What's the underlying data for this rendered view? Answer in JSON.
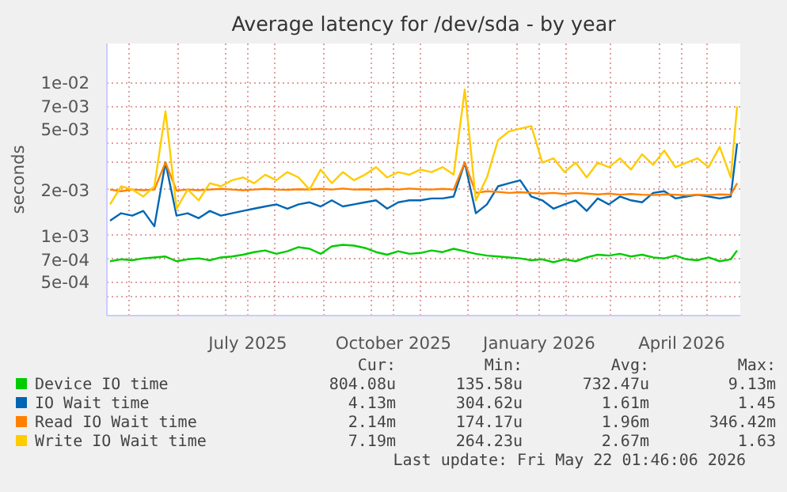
{
  "chart_data": {
    "type": "line",
    "title": "Average latency for /dev/sda - by year",
    "ylabel": "seconds",
    "log": "y",
    "grid": true,
    "legend": "bottom",
    "line_style": "solid",
    "xlim": [
      "2025-04-17",
      "2026-05-22"
    ],
    "xticks": [
      {
        "value": "2025-05-01",
        "label": null
      },
      {
        "value": "2025-06-01",
        "label": null
      },
      {
        "value": "2025-07-01",
        "label": null
      },
      {
        "value": "2025-07-15",
        "label": "July 2025"
      },
      {
        "value": "2025-08-01",
        "label": null
      },
      {
        "value": "2025-09-01",
        "label": null
      },
      {
        "value": "2025-10-01",
        "label": null
      },
      {
        "value": "2025-10-15",
        "label": "October 2025"
      },
      {
        "value": "2025-11-01",
        "label": null
      },
      {
        "value": "2025-12-01",
        "label": null
      },
      {
        "value": "2026-01-01",
        "label": null
      },
      {
        "value": "2026-01-15",
        "label": "January 2026"
      },
      {
        "value": "2026-02-01",
        "label": null
      },
      {
        "value": "2026-03-01",
        "label": null
      },
      {
        "value": "2026-04-01",
        "label": null
      },
      {
        "value": "2026-04-15",
        "label": "April 2026"
      },
      {
        "value": "2026-05-01",
        "label": null
      }
    ],
    "ylim": [
      0.0003,
      0.018
    ],
    "yticks": [
      {
        "value": 0.0004,
        "label": null
      },
      {
        "value": 0.0005,
        "label": "5e-04"
      },
      {
        "value": 0.0007,
        "label": "7e-04"
      },
      {
        "value": 0.001,
        "label": "1e-03"
      },
      {
        "value": 0.002,
        "label": "2e-03"
      },
      {
        "value": 0.003,
        "label": null
      },
      {
        "value": 0.004,
        "label": null
      },
      {
        "value": 0.005,
        "label": "5e-03"
      },
      {
        "value": 0.007,
        "label": "7e-03"
      },
      {
        "value": 0.01,
        "label": "1e-02"
      }
    ],
    "x": [
      "2025-04-19",
      "2025-04-26",
      "2025-05-03",
      "2025-05-10",
      "2025-05-17",
      "2025-05-24",
      "2025-05-31",
      "2025-06-07",
      "2025-06-14",
      "2025-06-21",
      "2025-06-28",
      "2025-07-05",
      "2025-07-12",
      "2025-07-19",
      "2025-07-26",
      "2025-08-02",
      "2025-08-09",
      "2025-08-16",
      "2025-08-23",
      "2025-08-30",
      "2025-09-06",
      "2025-09-13",
      "2025-09-20",
      "2025-09-27",
      "2025-10-04",
      "2025-10-11",
      "2025-10-18",
      "2025-10-25",
      "2025-11-01",
      "2025-11-08",
      "2025-11-15",
      "2025-11-22",
      "2025-11-29",
      "2025-12-06",
      "2025-12-13",
      "2025-12-20",
      "2025-12-27",
      "2026-01-03",
      "2026-01-10",
      "2026-01-17",
      "2026-01-24",
      "2026-01-31",
      "2026-02-07",
      "2026-02-14",
      "2026-02-21",
      "2026-02-28",
      "2026-03-07",
      "2026-03-14",
      "2026-03-21",
      "2026-03-28",
      "2026-04-04",
      "2026-04-11",
      "2026-04-18",
      "2026-04-25",
      "2026-05-02",
      "2026-05-09",
      "2026-05-16",
      "2026-05-20"
    ],
    "series": [
      {
        "name": "Device IO time",
        "color": "#00cc00",
        "values": [
          0.00068,
          0.0007,
          0.00069,
          0.00071,
          0.00072,
          0.00073,
          0.00068,
          0.0007,
          0.00071,
          0.00069,
          0.00072,
          0.00073,
          0.00075,
          0.00078,
          0.0008,
          0.00076,
          0.00079,
          0.00084,
          0.00082,
          0.00076,
          0.00085,
          0.00087,
          0.00086,
          0.00083,
          0.00078,
          0.00075,
          0.00079,
          0.00076,
          0.00077,
          0.0008,
          0.00078,
          0.00082,
          0.00079,
          0.00076,
          0.00074,
          0.00073,
          0.00072,
          0.00071,
          0.00069,
          0.0007,
          0.00067,
          0.0007,
          0.00068,
          0.00072,
          0.00075,
          0.00074,
          0.00076,
          0.00073,
          0.00075,
          0.00072,
          0.00071,
          0.00074,
          0.0007,
          0.00069,
          0.00072,
          0.00068,
          0.0007,
          0.0008
        ]
      },
      {
        "name": "IO Wait time",
        "color": "#0066b3",
        "values": [
          0.00125,
          0.0014,
          0.00135,
          0.00145,
          0.00115,
          0.003,
          0.00135,
          0.0014,
          0.0013,
          0.00145,
          0.00135,
          0.0014,
          0.00145,
          0.0015,
          0.00155,
          0.0016,
          0.0015,
          0.0016,
          0.00165,
          0.00155,
          0.0017,
          0.00155,
          0.0016,
          0.00165,
          0.0017,
          0.0015,
          0.00165,
          0.0017,
          0.0017,
          0.00175,
          0.00175,
          0.0018,
          0.003,
          0.0014,
          0.0016,
          0.0021,
          0.0022,
          0.0023,
          0.0018,
          0.0017,
          0.0015,
          0.0016,
          0.0017,
          0.00145,
          0.00175,
          0.0016,
          0.0018,
          0.0017,
          0.00165,
          0.0019,
          0.00195,
          0.00175,
          0.0018,
          0.00185,
          0.0018,
          0.00175,
          0.0018,
          0.004
        ]
      },
      {
        "name": "Read IO Wait time",
        "color": "#ff8000",
        "values": [
          0.002,
          0.00195,
          0.002,
          0.00198,
          0.002,
          0.003,
          0.00197,
          0.002,
          0.00198,
          0.002,
          0.00202,
          0.002,
          0.00198,
          0.002,
          0.00202,
          0.002,
          0.00199,
          0.00201,
          0.002,
          0.00202,
          0.002,
          0.00203,
          0.002,
          0.00201,
          0.002,
          0.00202,
          0.002,
          0.00203,
          0.00201,
          0.002,
          0.00202,
          0.002,
          0.003,
          0.0019,
          0.00195,
          0.00193,
          0.0019,
          0.00192,
          0.0019,
          0.00188,
          0.0019,
          0.00187,
          0.0019,
          0.00188,
          0.00186,
          0.00188,
          0.00185,
          0.00187,
          0.00185,
          0.00184,
          0.00186,
          0.00185,
          0.00183,
          0.00185,
          0.00184,
          0.00186,
          0.00185,
          0.0022
        ]
      },
      {
        "name": "Write IO Wait time",
        "color": "#ffcc00",
        "values": [
          0.0016,
          0.0021,
          0.002,
          0.0018,
          0.0021,
          0.0065,
          0.0015,
          0.002,
          0.0017,
          0.0022,
          0.0021,
          0.0023,
          0.0024,
          0.0022,
          0.0025,
          0.0023,
          0.0026,
          0.0024,
          0.002,
          0.0027,
          0.0022,
          0.0026,
          0.0023,
          0.0025,
          0.0028,
          0.0024,
          0.0026,
          0.0025,
          0.0027,
          0.0026,
          0.0028,
          0.0025,
          0.009,
          0.0017,
          0.0024,
          0.0042,
          0.0048,
          0.005,
          0.0052,
          0.003,
          0.0032,
          0.0026,
          0.003,
          0.0024,
          0.003,
          0.0028,
          0.0032,
          0.0027,
          0.0034,
          0.0029,
          0.0036,
          0.0028,
          0.003,
          0.0032,
          0.0028,
          0.0038,
          0.0024,
          0.007
        ]
      }
    ],
    "annotations": [
      "Cur:",
      "Min:",
      "Avg:",
      "Max:",
      "804.08u",
      "135.58u",
      "732.47u",
      "9.13m",
      "4.13m",
      "304.62u",
      "1.61m",
      "1.45",
      "2.14m",
      "174.17u",
      "1.96m",
      "346.42m",
      "7.19m",
      "264.23u",
      "2.67m",
      "1.63",
      "Last update: Fri May 22 01:46:06 2026"
    ]
  }
}
